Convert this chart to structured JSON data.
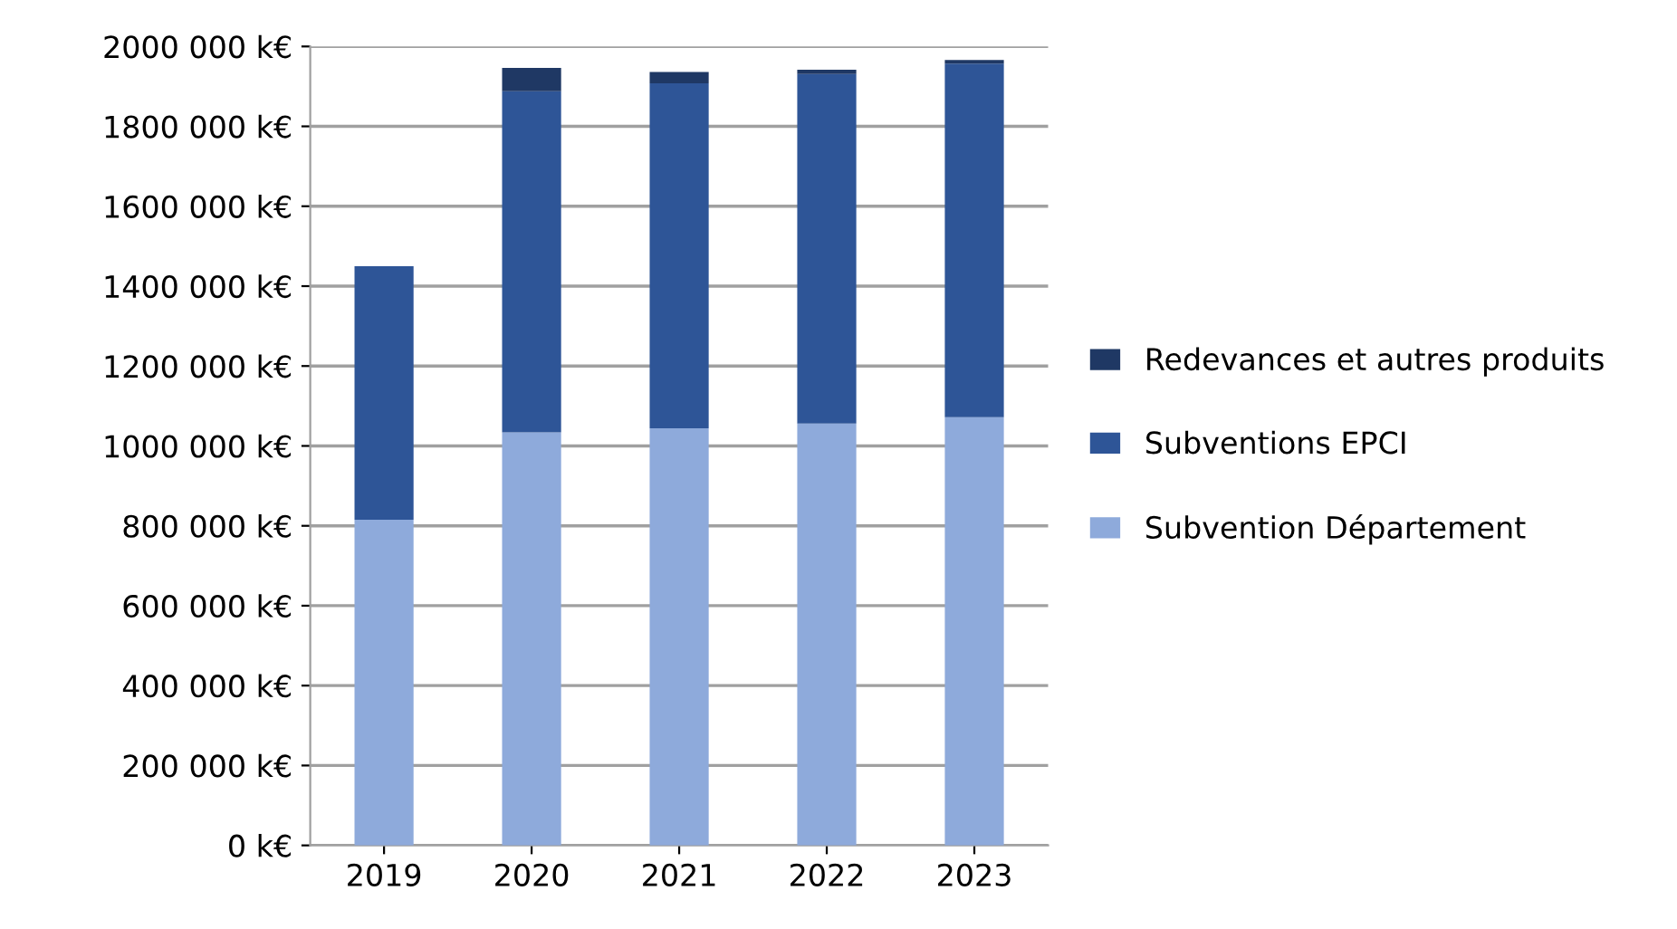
{
  "chart_data": {
    "type": "bar",
    "stacked": true,
    "categories": [
      "2019",
      "2020",
      "2021",
      "2022",
      "2023"
    ],
    "series": [
      {
        "name": "Subvention Département",
        "color": "#8eaadb",
        "values": [
          815000,
          1034000,
          1044000,
          1056000,
          1072000
        ]
      },
      {
        "name": "Subventions EPCI",
        "color": "#2e5597",
        "values": [
          635000,
          854000,
          864000,
          875000,
          885000
        ]
      },
      {
        "name": "Redevances et autres produits",
        "color": "#1f3864",
        "values": [
          0,
          58000,
          28000,
          11000,
          9000
        ]
      }
    ],
    "ylim": [
      0,
      2000000
    ],
    "yticks": [
      {
        "value": 0,
        "label": "0 k€"
      },
      {
        "value": 200000,
        "label": "200 000 k€"
      },
      {
        "value": 400000,
        "label": "400 000 k€"
      },
      {
        "value": 600000,
        "label": "600 000 k€"
      },
      {
        "value": 800000,
        "label": "800 000 k€"
      },
      {
        "value": 1000000,
        "label": "1000 000 k€"
      },
      {
        "value": 1200000,
        "label": "1200 000 k€"
      },
      {
        "value": 1400000,
        "label": "1400 000 k€"
      },
      {
        "value": 1600000,
        "label": "1600 000 k€"
      },
      {
        "value": 1800000,
        "label": "1800 000 k€"
      },
      {
        "value": 2000000,
        "label": "2000 000 k€"
      }
    ],
    "grid": "y",
    "legend": "right"
  }
}
